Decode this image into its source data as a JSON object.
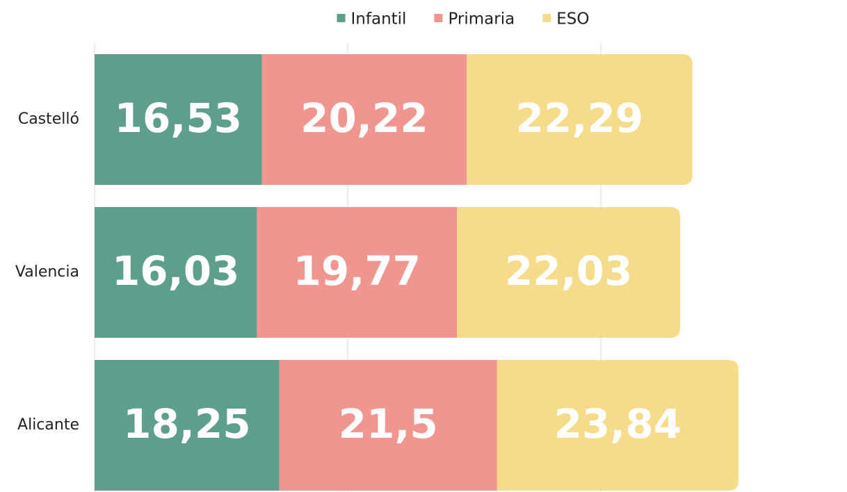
{
  "chart_data": {
    "type": "stacked_bar_horizontal",
    "categories": [
      "Castelló",
      "Valencia",
      "Alicante"
    ],
    "series": [
      {
        "name": "Infantil",
        "color": "#5e9e8c",
        "values": [
          16.53,
          16.03,
          18.25
        ],
        "value_labels": [
          "16,53",
          "16,03",
          "18,25"
        ]
      },
      {
        "name": "Primaria",
        "color": "#f0958f",
        "values": [
          20.22,
          19.77,
          21.5
        ],
        "value_labels": [
          "20,22",
          "19,77",
          "21,5"
        ]
      },
      {
        "name": "ESO",
        "color": "#f6dc8a",
        "values": [
          22.29,
          22.03,
          23.84
        ],
        "value_labels": [
          "22,29",
          "22,03",
          "23,84"
        ]
      }
    ],
    "xlim": [
      0,
      74
    ],
    "xticks": [
      0,
      25,
      50
    ],
    "grid": true,
    "legend": "top"
  }
}
